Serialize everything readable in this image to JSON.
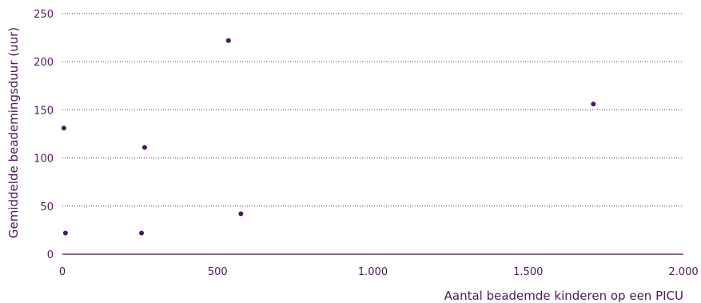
{
  "chart_data": {
    "type": "scatter",
    "title": "",
    "xlabel": "Aantal beademde kinderen op een PICU",
    "ylabel": "Gemiddelde beademingsduur (uur)",
    "xlim": [
      0,
      2000
    ],
    "ylim": [
      0,
      250
    ],
    "x_ticks": [
      0,
      500,
      1000,
      1500,
      2000
    ],
    "x_tick_labels": [
      "0",
      "500",
      "1.000",
      "1.500",
      "2.000"
    ],
    "y_ticks": [
      0,
      50,
      100,
      150,
      200,
      250
    ],
    "y_tick_labels": [
      "0",
      "50",
      "100",
      "150",
      "200",
      "250"
    ],
    "grid": "horizontal dotted",
    "points": [
      {
        "x": 5,
        "y": 131
      },
      {
        "x": 10,
        "y": 22
      },
      {
        "x": 255,
        "y": 22
      },
      {
        "x": 265,
        "y": 111
      },
      {
        "x": 535,
        "y": 222
      },
      {
        "x": 575,
        "y": 42
      },
      {
        "x": 1710,
        "y": 156
      }
    ]
  },
  "colors": {
    "marker": "#4a1a5c",
    "text": "#4a1a5c",
    "grid": "#5a2a6c"
  }
}
